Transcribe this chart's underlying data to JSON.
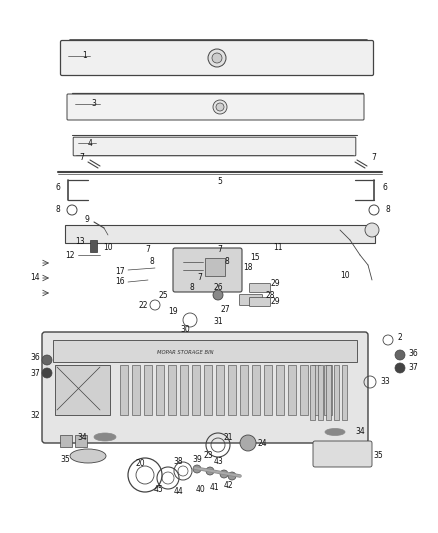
{
  "bg_color": "#ffffff",
  "line_color": "#444444",
  "fig_width": 4.38,
  "fig_height": 5.33,
  "dpi": 100,
  "label_fs": 6.0,
  "small_fs": 5.5
}
